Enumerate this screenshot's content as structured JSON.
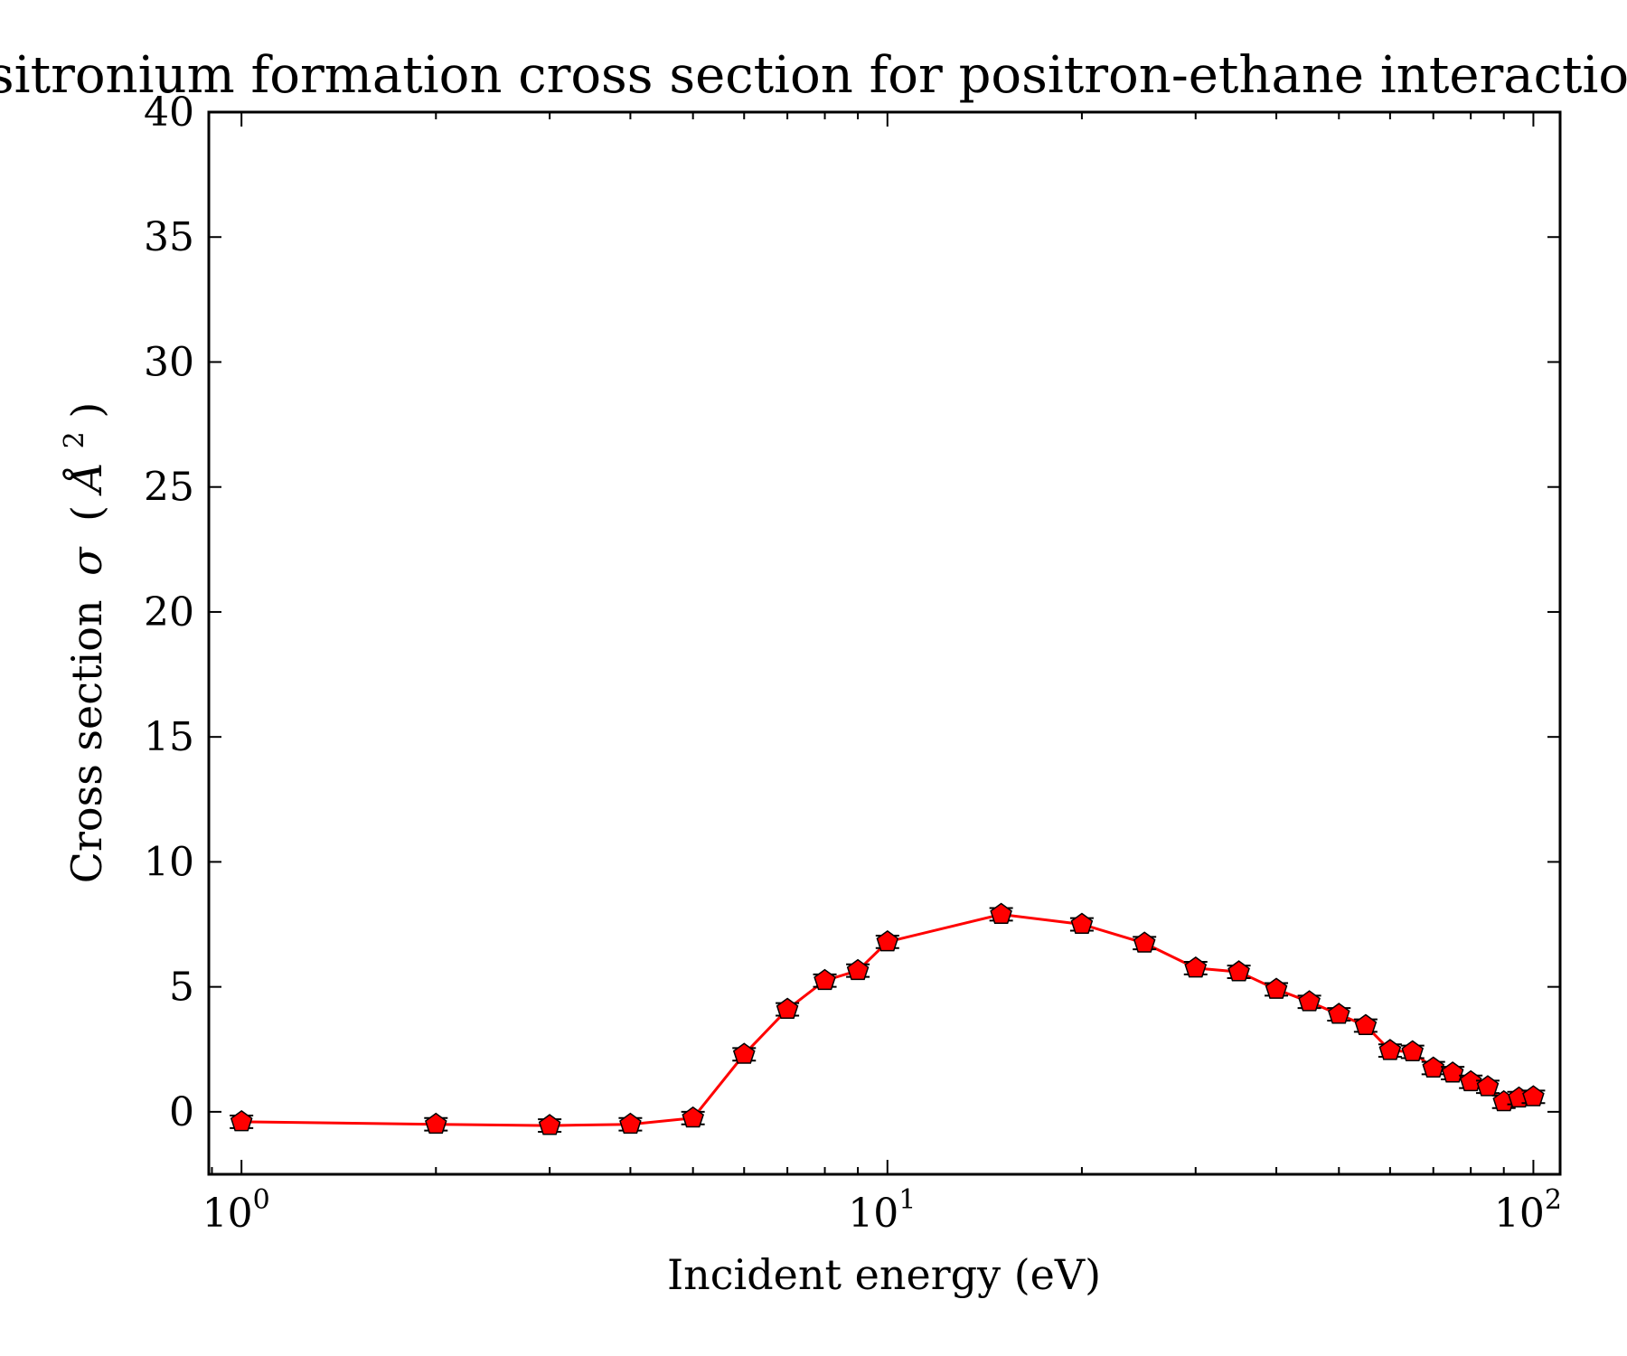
{
  "chart_data": {
    "type": "line",
    "title": "Positronium formation cross section for positron-ethane interaction",
    "xlabel": "Incident energy (eV)",
    "ylabel": {
      "main": "Cross section",
      "symbol": "σ",
      "unit_base": "Å",
      "unit_exp": "2"
    },
    "xscale": "log",
    "xlim": [
      0.89,
      110
    ],
    "ylim": [
      -2.5,
      40
    ],
    "x_ticks": [
      {
        "base": "10",
        "exp": "0",
        "value": 1
      },
      {
        "base": "10",
        "exp": "1",
        "value": 10
      },
      {
        "base": "10",
        "exp": "2",
        "value": 100
      }
    ],
    "y_ticks": [
      "0",
      "5",
      "10",
      "15",
      "20",
      "25",
      "30",
      "35",
      "40"
    ],
    "grid": false,
    "series": [
      {
        "color": "#ff0000",
        "marker": "pentagon",
        "x": [
          1,
          2,
          3,
          4,
          5,
          6,
          7,
          8,
          9,
          10,
          15,
          20,
          25,
          30,
          35,
          40,
          45,
          50,
          55,
          60,
          65,
          70,
          75,
          80,
          85,
          90,
          95,
          100
        ],
        "y": [
          -0.4,
          -0.5,
          -0.55,
          -0.5,
          -0.25,
          2.3,
          4.1,
          5.25,
          5.65,
          6.8,
          7.9,
          7.5,
          6.75,
          5.75,
          5.6,
          4.9,
          4.4,
          3.9,
          3.45,
          2.45,
          2.4,
          1.75,
          1.55,
          1.2,
          1.0,
          0.4,
          0.55,
          0.6
        ],
        "yerr": [
          0.25,
          0.25,
          0.25,
          0.25,
          0.25,
          0.25,
          0.25,
          0.25,
          0.25,
          0.25,
          0.25,
          0.25,
          0.25,
          0.25,
          0.25,
          0.25,
          0.25,
          0.25,
          0.25,
          0.25,
          0.25,
          0.25,
          0.25,
          0.25,
          0.25,
          0.25,
          0.25,
          0.25
        ]
      }
    ]
  }
}
